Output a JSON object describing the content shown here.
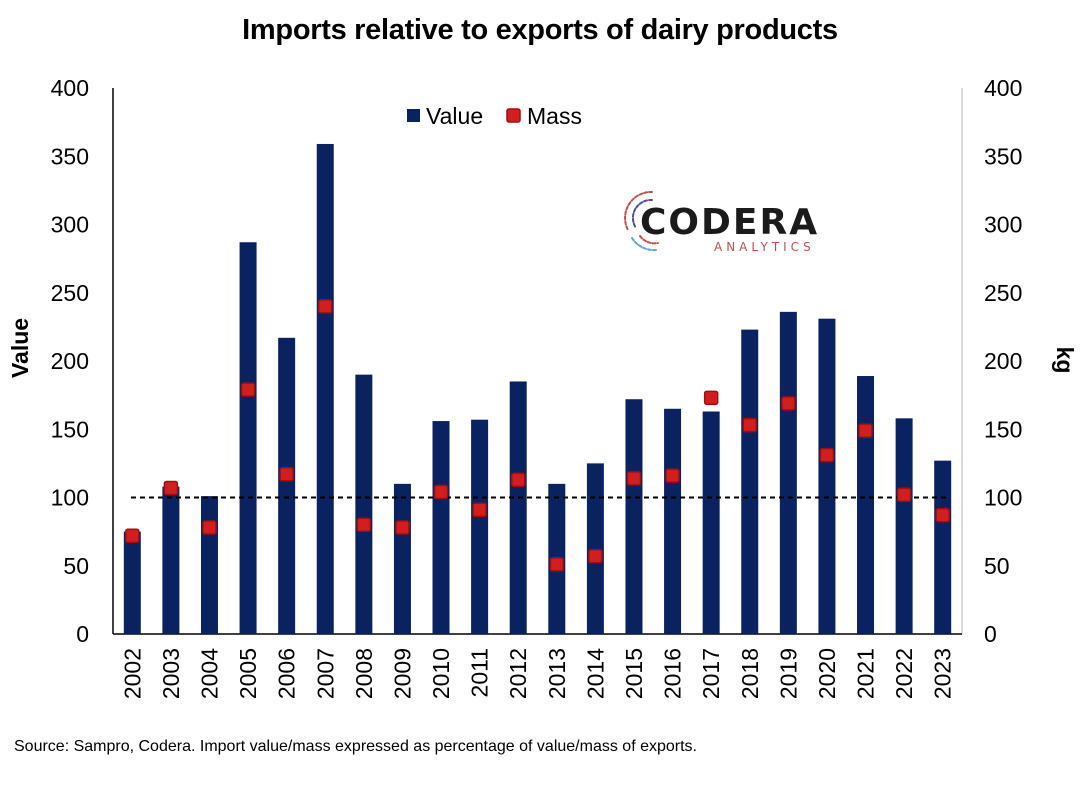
{
  "title": "Imports relative to exports of dairy products",
  "source": "Source: Sampro, Codera. Import value/mass expressed as percentage of value/mass of exports.",
  "logo": {
    "main": "CODERA",
    "sub": "ANALYTICS"
  },
  "colors": {
    "bar": "#0b2260",
    "marker": "#d11f1f",
    "marker_edge": "#9e1010",
    "reference_line": "#000000"
  },
  "chart_data": {
    "type": "bar",
    "categories": [
      "2002",
      "2003",
      "2004",
      "2005",
      "2006",
      "2007",
      "2008",
      "2009",
      "2010",
      "2011",
      "2012",
      "2013",
      "2014",
      "2015",
      "2016",
      "2017",
      "2018",
      "2019",
      "2020",
      "2021",
      "2022",
      "2023"
    ],
    "series": [
      {
        "name": "Value",
        "kind": "bar",
        "axis": "left",
        "values": [
          75,
          108,
          101,
          287,
          217,
          359,
          190,
          110,
          156,
          157,
          185,
          110,
          125,
          172,
          165,
          163,
          223,
          236,
          231,
          189,
          158,
          127
        ]
      },
      {
        "name": "Mass",
        "kind": "marker",
        "axis": "right",
        "values": [
          72,
          107,
          78,
          179,
          117,
          240,
          80,
          78,
          104,
          91,
          113,
          51,
          57,
          114,
          116,
          173,
          153,
          169,
          131,
          149,
          102,
          87
        ]
      }
    ],
    "reference_line": 100,
    "ylabel": "Value",
    "y2label": "kg",
    "ylim": [
      0,
      400
    ],
    "yticks": [
      0,
      50,
      100,
      150,
      200,
      250,
      300,
      350,
      400
    ],
    "y2lim": [
      0,
      400
    ],
    "y2ticks": [
      0,
      50,
      100,
      150,
      200,
      250,
      300,
      350,
      400
    ],
    "legend": [
      "Value",
      "Mass"
    ],
    "legend_position": "top-center",
    "grid": false
  }
}
